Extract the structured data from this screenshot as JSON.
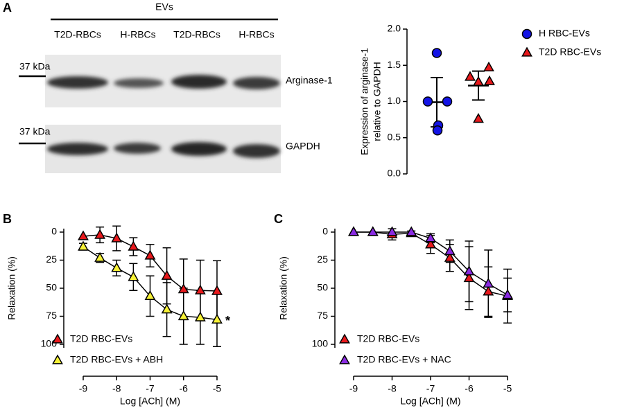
{
  "blot": {
    "panel": "A",
    "group_label": "EVs",
    "lanes": [
      "T2D-RBCs",
      "H-RBCs",
      "T2D-RBCs",
      "H-RBCs"
    ],
    "rows": [
      {
        "marker": "37 kDa",
        "label": "Arginase-1"
      },
      {
        "marker": "37 kDa",
        "label": "GAPDH"
      }
    ]
  },
  "chart_data": [
    {
      "type": "scatter",
      "ylabel": [
        "Expression of arginase-1",
        "relative to GAPDH"
      ],
      "ylim": [
        0,
        2.0
      ],
      "yticks": [
        {
          "value": 0,
          "label": "0.0"
        },
        {
          "value": 0.5,
          "label": "0.5"
        },
        {
          "value": 1.0,
          "label": "1.0"
        },
        {
          "value": 1.5,
          "label": "1.5"
        },
        {
          "value": 2.0,
          "label": "2.0"
        }
      ],
      "series": [
        {
          "name": "H RBC-EVs",
          "color": "#1414e6",
          "marker": "circle",
          "values": [
            1.67,
            1.0,
            1.0,
            0.67,
            0.6
          ],
          "mean": 0.99,
          "sd": 0.34
        },
        {
          "name": "T2D RBC-EVs",
          "color": "#e8191c",
          "marker": "triangle",
          "values": [
            1.47,
            1.34,
            1.27,
            1.28,
            0.76
          ],
          "mean": 1.22,
          "sd": 0.2
        }
      ]
    },
    {
      "type": "line",
      "panel": "B",
      "xlabel": "Log [ACh] (M)",
      "ylabel": "Relaxation (%)",
      "xlim": [
        -9.4,
        -4.9
      ],
      "xticks": [
        -9,
        -8,
        -7,
        -6,
        -5
      ],
      "ylim": [
        100,
        0
      ],
      "yticks": [
        0,
        25,
        50,
        75,
        100
      ],
      "annotation": "*",
      "series": [
        {
          "name": "T2D RBC-EVs",
          "color": "#e8191c",
          "x": [
            -9,
            -8.5,
            -8,
            -7.5,
            -7,
            -6.5,
            -6,
            -5.5,
            -5
          ],
          "values": [
            3.7,
            2.5,
            5.6,
            13,
            21,
            39,
            51,
            52,
            52.5
          ],
          "errors": [
            0,
            7,
            11,
            8,
            10,
            25,
            27,
            27,
            27
          ]
        },
        {
          "name": "T2D RBC-EVs + ABH",
          "color": "#f7f236",
          "x": [
            -9,
            -8.5,
            -8,
            -7.5,
            -7,
            -6.5,
            -6,
            -5.5,
            -5
          ],
          "values": [
            13,
            23,
            32,
            40,
            57,
            69,
            75,
            76,
            78
          ],
          "errors": [
            3,
            4,
            7,
            12,
            18,
            24,
            25,
            24,
            24
          ]
        }
      ]
    },
    {
      "type": "line",
      "panel": "C",
      "xlabel": "Log [ACh] (M)",
      "ylabel": "Relaxation (%)",
      "xlim": [
        -9.4,
        -4.9
      ],
      "xticks": [
        -9,
        -8,
        -7,
        -6,
        -5
      ],
      "ylim": [
        100,
        0
      ],
      "yticks": [
        0,
        25,
        50,
        75,
        100
      ],
      "series": [
        {
          "name": "T2D RBC-EVs",
          "color": "#e8191c",
          "x": [
            -9,
            -8.5,
            -8,
            -7.5,
            -7,
            -6.5,
            -6,
            -5.5,
            -5
          ],
          "values": [
            0,
            0,
            2,
            1,
            11,
            23,
            41,
            53,
            57
          ],
          "errors": [
            0,
            0,
            5,
            2,
            8,
            12,
            28,
            22,
            24
          ]
        },
        {
          "name": "T2D RBC-EVs + NAC",
          "color": "#8a2be2",
          "x": [
            -9,
            -8.5,
            -8,
            -7.5,
            -7,
            -6.5,
            -6,
            -5.5,
            -5
          ],
          "values": [
            0,
            0,
            0,
            0,
            5.5,
            17,
            35,
            46,
            56
          ],
          "errors": [
            0,
            0,
            0,
            0,
            4,
            10,
            27,
            30,
            15
          ]
        }
      ]
    }
  ]
}
